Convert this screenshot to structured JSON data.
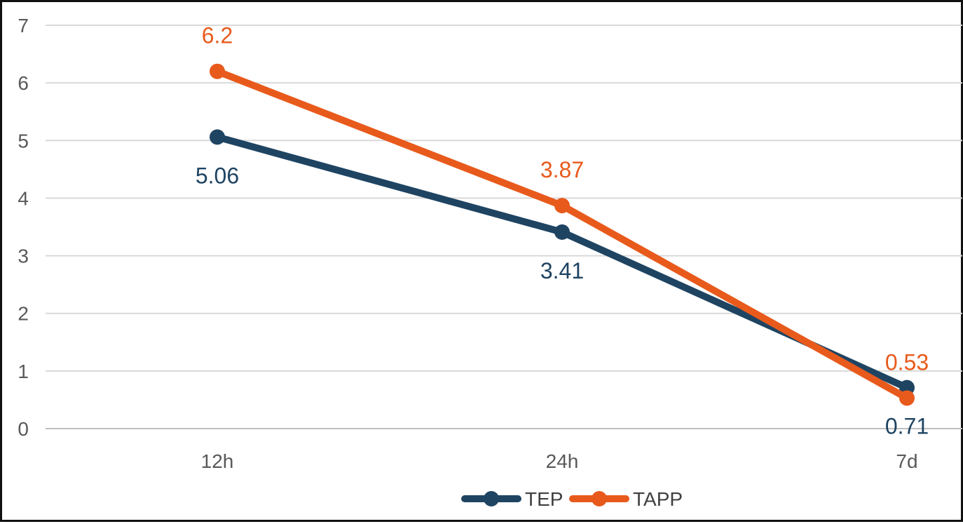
{
  "chart_data": {
    "type": "line",
    "categories": [
      "12h",
      "24h",
      "7d"
    ],
    "ylim": [
      0,
      7
    ],
    "yticks": [
      "0",
      "1",
      "2",
      "3",
      "4",
      "5",
      "6",
      "7"
    ],
    "grid": true,
    "legend_position": "bottom",
    "series": [
      {
        "name": "TEP",
        "values": [
          5.06,
          3.41,
          0.71
        ],
        "labels": [
          "5.06",
          "3.41",
          "0.71"
        ],
        "color": "#1f4462",
        "label_placement": "below"
      },
      {
        "name": "TAPP",
        "values": [
          6.2,
          3.87,
          0.53
        ],
        "labels": [
          "6.2",
          "3.87",
          "0.53"
        ],
        "color": "#e85a1c",
        "label_placement": "above"
      }
    ]
  }
}
